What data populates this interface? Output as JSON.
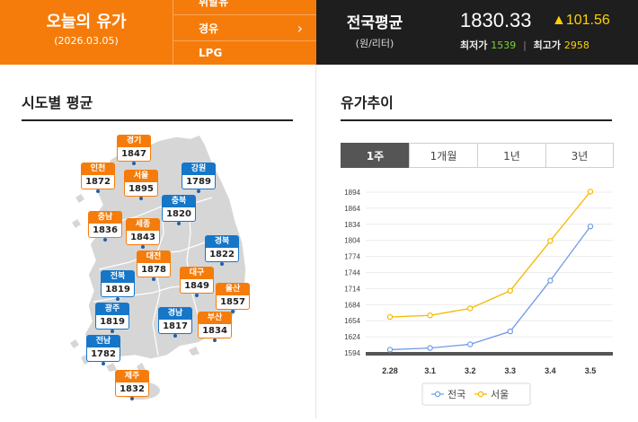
{
  "header": {
    "title": "오늘의 유가",
    "date": "(2026.03.05)",
    "menu": [
      {
        "label": "휘발유"
      },
      {
        "label": "경유"
      },
      {
        "label": "LPG"
      }
    ],
    "chevron": "›",
    "national": {
      "title": "전국평균",
      "unit": "(원/리터)",
      "price": "1830.33",
      "change": "▲101.56",
      "min_label": "최저가",
      "min_value": "1539",
      "max_label": "최고가",
      "max_value": "2958",
      "separator": "|"
    }
  },
  "regional": {
    "title": "시도별 평균",
    "regions": [
      {
        "name": "경기",
        "value": "1847",
        "color": "orange"
      },
      {
        "name": "인천",
        "value": "1872",
        "color": "orange"
      },
      {
        "name": "서울",
        "value": "1895",
        "color": "orange"
      },
      {
        "name": "강원",
        "value": "1789",
        "color": "blue"
      },
      {
        "name": "충북",
        "value": "1820",
        "color": "blue"
      },
      {
        "name": "충남",
        "value": "1836",
        "color": "orange"
      },
      {
        "name": "세종",
        "value": "1843",
        "color": "orange"
      },
      {
        "name": "경북",
        "value": "1822",
        "color": "blue"
      },
      {
        "name": "대전",
        "value": "1878",
        "color": "orange"
      },
      {
        "name": "전북",
        "value": "1819",
        "color": "blue"
      },
      {
        "name": "대구",
        "value": "1849",
        "color": "orange"
      },
      {
        "name": "울산",
        "value": "1857",
        "color": "orange"
      },
      {
        "name": "광주",
        "value": "1819",
        "color": "blue"
      },
      {
        "name": "경남",
        "value": "1817",
        "color": "blue"
      },
      {
        "name": "부산",
        "value": "1834",
        "color": "orange"
      },
      {
        "name": "전남",
        "value": "1782",
        "color": "blue"
      },
      {
        "name": "제주",
        "value": "1832",
        "color": "orange"
      }
    ]
  },
  "trend": {
    "title": "유가추이",
    "tabs": [
      {
        "label": "1주",
        "active": true
      },
      {
        "label": "1개월",
        "active": false
      },
      {
        "label": "1년",
        "active": false
      },
      {
        "label": "3년",
        "active": false
      }
    ]
  },
  "colors": {
    "accent": "#f57c0b",
    "dark": "#1e1e1e",
    "region_blue": "#1676c8",
    "national_line": "#6f9be6",
    "seoul_line": "#f5b800"
  },
  "chart_data": {
    "type": "line",
    "x": [
      "2.28",
      "3.1",
      "3.2",
      "3.3",
      "3.4",
      "3.5"
    ],
    "yticks": [
      "1894",
      "1864",
      "1834",
      "1804",
      "1774",
      "1744",
      "1714",
      "1684",
      "1654",
      "1624",
      "1594"
    ],
    "ylim": [
      1594,
      1894
    ],
    "series": [
      {
        "name": "전국",
        "values": [
          1600,
          1603,
          1610,
          1634,
          1729,
          1830
        ],
        "color": "#6f9be6"
      },
      {
        "name": "서울",
        "values": [
          1661,
          1664,
          1677,
          1710,
          1803,
          1895
        ],
        "color": "#f5b800"
      }
    ],
    "legend": "bottom-center",
    "grid": true
  }
}
